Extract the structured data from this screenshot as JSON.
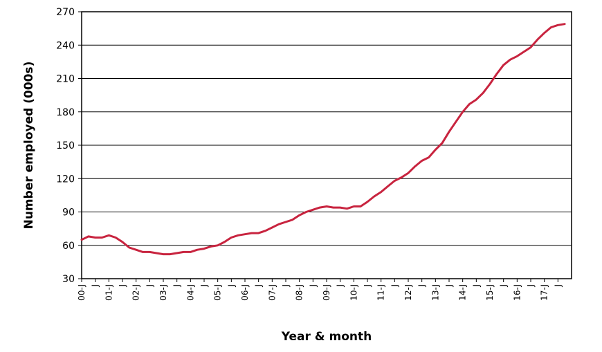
{
  "chart_data": {
    "type": "line",
    "title": "",
    "xlabel": "Year & month",
    "ylabel": "Number employed (000s)",
    "ylim": [
      30,
      270
    ],
    "yticks": [
      30,
      60,
      90,
      120,
      150,
      180,
      210,
      240,
      270
    ],
    "xticks": [
      "00-J",
      "J",
      "01-J",
      "J",
      "02-J",
      "J",
      "03-J",
      "J",
      "04-J",
      "J",
      "05-J",
      "J",
      "06-J",
      "J",
      "07-J",
      "J",
      "08-J",
      "J",
      "09-J",
      "J",
      "10-J",
      "J",
      "11-J",
      "J",
      "12-J",
      "J",
      "13-J",
      "J",
      "14-J",
      "J",
      "15-J",
      "J",
      "16-J",
      "J",
      "17-J",
      "J"
    ],
    "grid": true,
    "legend": "none",
    "line_color": "#c8243f",
    "series": [
      {
        "x": [
          "2000-01",
          "2000-04",
          "2000-07",
          "2000-10",
          "2001-01",
          "2001-04",
          "2001-07",
          "2001-10",
          "2002-01",
          "2002-04",
          "2002-07",
          "2002-10",
          "2003-01",
          "2003-04",
          "2003-07",
          "2003-10",
          "2004-01",
          "2004-04",
          "2004-07",
          "2004-10",
          "2005-01",
          "2005-04",
          "2005-07",
          "2005-10",
          "2006-01",
          "2006-04",
          "2006-07",
          "2006-10",
          "2007-01",
          "2007-04",
          "2007-07",
          "2007-10",
          "2008-01",
          "2008-04",
          "2008-07",
          "2008-10",
          "2009-01",
          "2009-04",
          "2009-07",
          "2009-10",
          "2010-01",
          "2010-04",
          "2010-07",
          "2010-10",
          "2011-01",
          "2011-04",
          "2011-07",
          "2011-10",
          "2012-01",
          "2012-04",
          "2012-07",
          "2012-10",
          "2013-01",
          "2013-04",
          "2013-07",
          "2013-10",
          "2014-01",
          "2014-04",
          "2014-07",
          "2014-10",
          "2015-01",
          "2015-04",
          "2015-07",
          "2015-10",
          "2016-01",
          "2016-04",
          "2016-07",
          "2016-10",
          "2017-01",
          "2017-04",
          "2017-07",
          "2017-10"
        ],
        "values": [
          65,
          68,
          67,
          67,
          69,
          67,
          63,
          58,
          56,
          54,
          54,
          53,
          52,
          52,
          53,
          54,
          54,
          56,
          57,
          59,
          60,
          63,
          67,
          69,
          70,
          71,
          71,
          73,
          76,
          79,
          81,
          83,
          87,
          90,
          92,
          94,
          95,
          94,
          94,
          93,
          95,
          95,
          99,
          104,
          108,
          113,
          118,
          121,
          125,
          131,
          136,
          139,
          146,
          152,
          162,
          171,
          180,
          187,
          191,
          197,
          205,
          214,
          222,
          227,
          230,
          234,
          238,
          245,
          251,
          256,
          258,
          259
        ]
      }
    ]
  }
}
